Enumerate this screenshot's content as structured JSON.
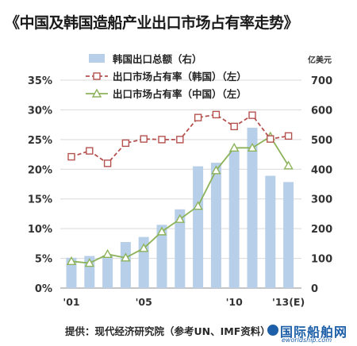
{
  "title": "《中国及韩国造船产业出口市场占有率走势》",
  "source": "提供：现代经济研究院（参考UN、IMF资料）",
  "watermark": {
    "cn": "国际船舶网",
    "en": "eworldship.com"
  },
  "chart_data": {
    "type": "bar",
    "categories": [
      "2001",
      "2002",
      "2003",
      "2004",
      "2005",
      "2006",
      "2007",
      "2008",
      "2009",
      "2010",
      "2011",
      "2012",
      "2013(E)"
    ],
    "x_tick_labels": [
      {
        "index": 0,
        "label": "'01"
      },
      {
        "index": 4,
        "label": "'05"
      },
      {
        "index": 9,
        "label": "'10"
      },
      {
        "index": 12,
        "label": "'13(E)"
      }
    ],
    "left_axis": {
      "min": 0,
      "max": 0.35,
      "ticks": [
        "0%",
        "5%",
        "10%",
        "15%",
        "20%",
        "25%",
        "30%",
        "35%"
      ]
    },
    "right_axis": {
      "min": 0,
      "max": 700,
      "unit_label": "亿美元",
      "ticks": [
        "0",
        "100",
        "200",
        "300",
        "400",
        "500",
        "600",
        "700"
      ]
    },
    "grid": true,
    "legend_position": "top",
    "series": [
      {
        "name": "韩国出口总额（右）",
        "type": "bar",
        "axis": "right",
        "color": "#b8cfe9",
        "values": [
          102,
          108,
          110,
          155,
          172,
          213,
          265,
          410,
          422,
          462,
          540,
          378,
          357
        ]
      },
      {
        "name": "出口市场占有率（韩国）（左）",
        "type": "line",
        "axis": "left",
        "color": "#b5524f",
        "marker": "square",
        "values": [
          0.221,
          0.231,
          0.21,
          0.244,
          0.251,
          0.25,
          0.25,
          0.287,
          0.292,
          0.272,
          0.291,
          0.251,
          0.256
        ]
      },
      {
        "name": "出口市场占有率（中国）（左）",
        "type": "line",
        "axis": "left",
        "color": "#8db35a",
        "marker": "triangle",
        "values": [
          0.045,
          0.042,
          0.057,
          0.051,
          0.067,
          0.095,
          0.116,
          0.138,
          0.198,
          0.236,
          0.236,
          0.255,
          0.206
        ]
      }
    ]
  }
}
